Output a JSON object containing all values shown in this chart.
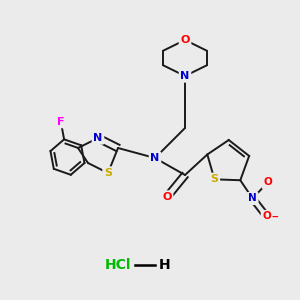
{
  "bg_color": "#ebebeb",
  "atom_colors": {
    "C": "#000000",
    "N": "#0000cc",
    "O": "#ff0000",
    "S": "#ccaa00",
    "F": "#ff00ff",
    "H": "#000000",
    "Cl": "#00bb00"
  },
  "bond_color": "#1a1a1a",
  "lw": 1.4
}
